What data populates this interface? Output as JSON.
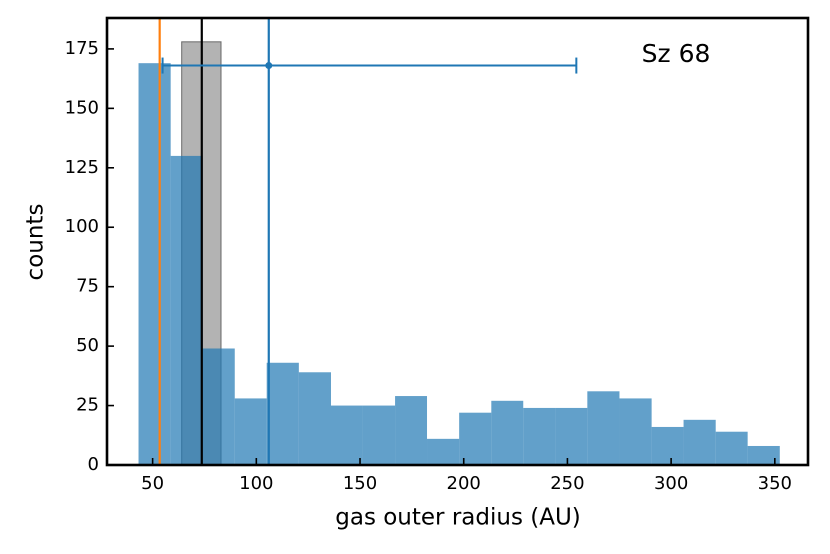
{
  "chart_data": {
    "type": "histogram",
    "xlabel": "gas outer radius (AU)",
    "ylabel": "counts",
    "annotation": "Sz 68",
    "xlim": [
      28,
      366
    ],
    "ylim": [
      0,
      188
    ],
    "xticks": [
      50,
      100,
      150,
      200,
      250,
      300,
      350
    ],
    "yticks": [
      0,
      25,
      50,
      75,
      100,
      125,
      150,
      175
    ],
    "histograms": [
      {
        "color": "#808080",
        "bins": [
          64,
          83
        ],
        "counts": [
          178
        ]
      },
      {
        "color": "#1f77b4",
        "bins": [
          43.2,
          58.7,
          74.1,
          89.6,
          105.0,
          120.5,
          136.0,
          151.4,
          166.9,
          182.3,
          197.8,
          213.3,
          228.7,
          244.2,
          259.6,
          275.1,
          290.6,
          306.0,
          321.5,
          336.9,
          352.4
        ],
        "counts": [
          169,
          130,
          49,
          28,
          43,
          39,
          25,
          25,
          29,
          11,
          22,
          27,
          24,
          24,
          31,
          28,
          16,
          19,
          14,
          8
        ]
      }
    ],
    "vlines": [
      {
        "x": 53.4,
        "color": "#ff7f0e"
      },
      {
        "x": 73.7,
        "color": "#000000"
      },
      {
        "x": 106.0,
        "color": "#1f77b4"
      }
    ],
    "errorbar": {
      "x": 106.0,
      "y": 168,
      "xerr": [
        51.2,
        148.3
      ],
      "color": "#1f77b4"
    }
  }
}
